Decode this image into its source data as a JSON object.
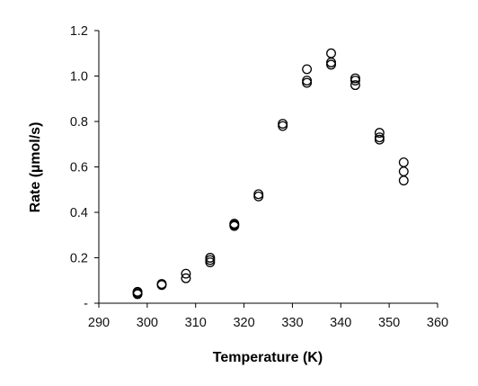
{
  "chart_data": {
    "type": "scatter",
    "title": "",
    "xlabel": "Temperature (K)",
    "ylabel": "Rate (µmol/s)",
    "xlim": [
      290,
      360
    ],
    "ylim": [
      0,
      1.2
    ],
    "x_ticks": [
      290,
      300,
      310,
      320,
      330,
      340,
      350,
      360
    ],
    "x_tick_labels": [
      "290",
      "300",
      "310",
      "320",
      "330",
      "340",
      "350",
      "360"
    ],
    "y_ticks": [
      0,
      0.2,
      0.4,
      0.6,
      0.8,
      1.0,
      1.2
    ],
    "y_tick_labels": [
      "-",
      "0.2",
      "0.4",
      "0.6",
      "0.8",
      "1.0",
      "1.2"
    ],
    "grid": false,
    "legend": "none",
    "marker": "open-circle",
    "marker_color": "#000000",
    "points": [
      {
        "x": 298,
        "y": 0.04
      },
      {
        "x": 298,
        "y": 0.05
      },
      {
        "x": 298,
        "y": 0.045
      },
      {
        "x": 303,
        "y": 0.08
      },
      {
        "x": 303,
        "y": 0.085
      },
      {
        "x": 308,
        "y": 0.11
      },
      {
        "x": 308,
        "y": 0.13
      },
      {
        "x": 313,
        "y": 0.18
      },
      {
        "x": 313,
        "y": 0.19
      },
      {
        "x": 313,
        "y": 0.2
      },
      {
        "x": 318,
        "y": 0.34
      },
      {
        "x": 318,
        "y": 0.35
      },
      {
        "x": 318,
        "y": 0.345
      },
      {
        "x": 323,
        "y": 0.47
      },
      {
        "x": 323,
        "y": 0.48
      },
      {
        "x": 328,
        "y": 0.78
      },
      {
        "x": 328,
        "y": 0.79
      },
      {
        "x": 333,
        "y": 0.97
      },
      {
        "x": 333,
        "y": 0.98
      },
      {
        "x": 333,
        "y": 1.03
      },
      {
        "x": 338,
        "y": 1.05
      },
      {
        "x": 338,
        "y": 1.06
      },
      {
        "x": 338,
        "y": 1.1
      },
      {
        "x": 343,
        "y": 0.96
      },
      {
        "x": 343,
        "y": 0.98
      },
      {
        "x": 343,
        "y": 0.99
      },
      {
        "x": 348,
        "y": 0.72
      },
      {
        "x": 348,
        "y": 0.73
      },
      {
        "x": 348,
        "y": 0.75
      },
      {
        "x": 353,
        "y": 0.54
      },
      {
        "x": 353,
        "y": 0.58
      },
      {
        "x": 353,
        "y": 0.62
      }
    ]
  }
}
